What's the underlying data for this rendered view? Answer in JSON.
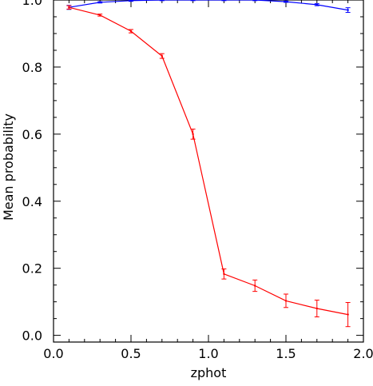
{
  "chart_data": {
    "type": "line",
    "xlabel": "zphot",
    "ylabel": "Mean probability",
    "xlim": [
      0.0,
      2.0
    ],
    "ylim": [
      -0.02,
      1.0
    ],
    "xticks": [
      "0.0",
      "0.5",
      "1.0",
      "1.5",
      "2.0"
    ],
    "yticks": [
      "0.0",
      "0.2",
      "0.4",
      "0.6",
      "0.8",
      "1.0"
    ],
    "grid": false,
    "legend": "none",
    "series": [
      {
        "color": "#0000ff",
        "x": [
          0.1,
          0.3,
          0.5,
          0.7,
          0.9,
          1.1,
          1.3,
          1.5,
          1.7,
          1.9
        ],
        "y": [
          0.978,
          0.993,
          0.998,
          1.0,
          1.0,
          1.0,
          1.0,
          0.995,
          0.986,
          0.97
        ],
        "err": [
          0.006,
          0.002,
          0.002,
          0.002,
          0.002,
          0.002,
          0.002,
          0.002,
          0.003,
          0.007
        ]
      },
      {
        "color": "#ff0000",
        "x": [
          0.1,
          0.3,
          0.5,
          0.7,
          0.9,
          1.1,
          1.3,
          1.5,
          1.7,
          1.9
        ],
        "y": [
          0.978,
          0.955,
          0.907,
          0.833,
          0.6,
          0.183,
          0.148,
          0.103,
          0.08,
          0.062
        ],
        "err": [
          0.005,
          0.003,
          0.005,
          0.007,
          0.015,
          0.015,
          0.017,
          0.02,
          0.025,
          0.036
        ]
      }
    ]
  }
}
